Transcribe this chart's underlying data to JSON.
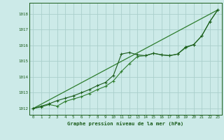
{
  "title": "Graphe pression niveau de la mer (hPa)",
  "bg_color": "#cceae8",
  "grid_color": "#aacfcc",
  "line_color_main": "#1a5c1a",
  "line_color_alt": "#2e7d2e",
  "line_color_smooth": "#2e7d2e",
  "xmin": -0.5,
  "xmax": 23.5,
  "ymin": 1011.6,
  "ymax": 1018.7,
  "yticks": [
    1012,
    1013,
    1014,
    1015,
    1016,
    1017,
    1018
  ],
  "xticks": [
    0,
    1,
    2,
    3,
    4,
    5,
    6,
    7,
    8,
    9,
    10,
    11,
    12,
    13,
    14,
    15,
    16,
    17,
    18,
    19,
    20,
    21,
    22,
    23
  ],
  "series1_x": [
    0,
    1,
    2,
    3,
    4,
    5,
    6,
    7,
    8,
    9,
    10,
    11,
    12,
    13,
    14,
    15,
    16,
    17,
    18,
    19,
    20,
    21,
    22,
    23
  ],
  "series1_y": [
    1012.0,
    1012.15,
    1012.3,
    1012.5,
    1012.65,
    1012.8,
    1013.0,
    1013.2,
    1013.45,
    1013.65,
    1014.1,
    1015.45,
    1015.55,
    1015.4,
    1015.35,
    1015.5,
    1015.4,
    1015.35,
    1015.45,
    1015.9,
    1016.05,
    1016.6,
    1017.5,
    1018.25
  ],
  "series2_x": [
    0,
    1,
    2,
    3,
    4,
    5,
    6,
    7,
    8,
    9,
    10,
    11,
    12,
    13,
    14,
    15,
    16,
    17,
    18,
    19,
    20,
    21,
    22,
    23
  ],
  "series2_y": [
    1012.0,
    1012.1,
    1012.25,
    1012.15,
    1012.45,
    1012.6,
    1012.75,
    1012.95,
    1013.2,
    1013.4,
    1013.75,
    1014.35,
    1014.85,
    1015.3,
    1015.35,
    1015.5,
    1015.4,
    1015.35,
    1015.45,
    1015.85,
    1016.05,
    1016.6,
    1017.5,
    1018.25
  ],
  "series3_x": [
    0,
    23
  ],
  "series3_y": [
    1012.0,
    1018.25
  ]
}
